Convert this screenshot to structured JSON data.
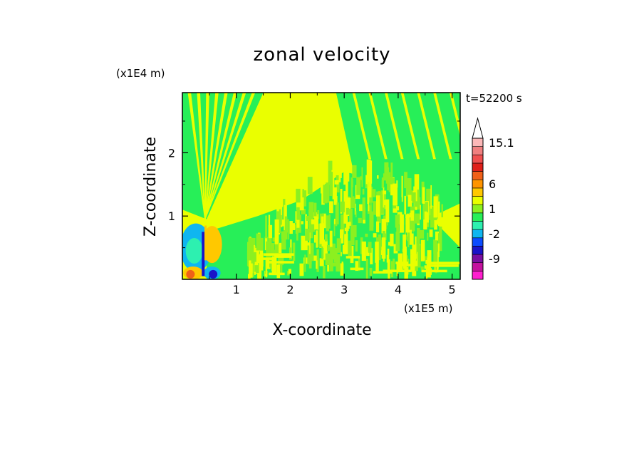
{
  "chart_data": {
    "type": "heatmap",
    "title": "zonal velocity",
    "xlabel": "X-coordinate",
    "ylabel": "Z-coordinate",
    "x_unit": "(x1E5 m)",
    "y_unit": "(x1E4 m)",
    "time_label": "t=52200 s",
    "xlim": [
      0,
      5.15
    ],
    "ylim": [
      0,
      2.95
    ],
    "x_ticks": [
      "1",
      "2",
      "3",
      "4",
      "5"
    ],
    "x_tick_values": [
      1,
      2,
      3,
      4,
      5
    ],
    "y_ticks": [
      "1",
      "2"
    ],
    "y_tick_values": [
      1,
      2
    ],
    "colorbar": {
      "colors": [
        "#ff1ecf",
        "#c4129e",
        "#7a0fa0",
        "#1a14c8",
        "#0b4cff",
        "#0fb6f0",
        "#2df0b0",
        "#27ef58",
        "#8cf020",
        "#eaff00",
        "#ffc800",
        "#ff9400",
        "#f06018",
        "#e0201a",
        "#f05050",
        "#f08080",
        "#fcb8b8"
      ],
      "tick_labels": [
        "-9",
        "-2",
        "1",
        "6",
        "15.1"
      ],
      "tick_values": [
        -9,
        -2,
        1,
        6,
        15.1
      ]
    }
  }
}
